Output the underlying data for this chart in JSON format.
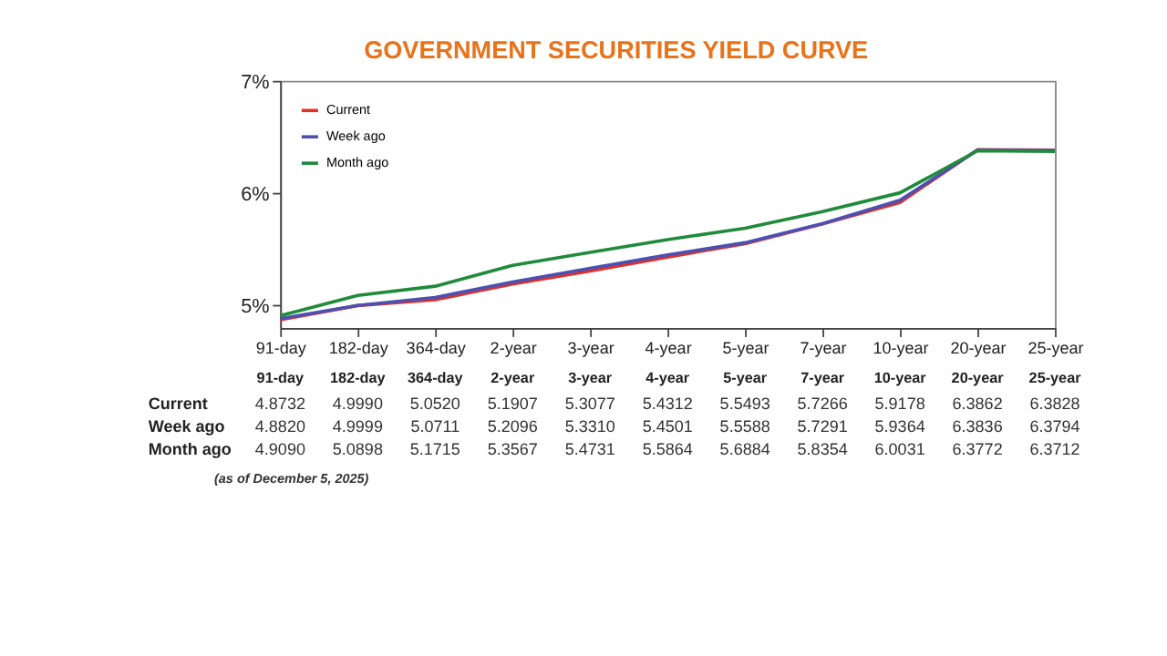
{
  "chart_data": {
    "type": "line",
    "title": "GOVERNMENT SECURITIES YIELD CURVE",
    "categories": [
      "91-day",
      "182-day",
      "364-day",
      "2-year",
      "3-year",
      "4-year",
      "5-year",
      "7-year",
      "10-year",
      "20-year",
      "25-year"
    ],
    "series": [
      {
        "name": "Current",
        "color": "#e0312b",
        "values": [
          4.8732,
          4.999,
          5.052,
          5.1907,
          5.3077,
          5.4312,
          5.5493,
          5.7266,
          5.9178,
          6.3862,
          6.3828
        ],
        "value_labels": [
          "4.8732",
          "4.9990",
          "5.0520",
          "5.1907",
          "5.3077",
          "5.4312",
          "5.5493",
          "5.7266",
          "5.9178",
          "6.3862",
          "6.3828"
        ]
      },
      {
        "name": "Week ago",
        "color": "#4b51b3",
        "values": [
          4.882,
          4.9999,
          5.0711,
          5.2096,
          5.331,
          5.4501,
          5.5588,
          5.7291,
          5.9364,
          6.3836,
          6.3794
        ],
        "value_labels": [
          "4.8820",
          "4.9999",
          "5.0711",
          "5.2096",
          "5.3310",
          "5.4501",
          "5.5588",
          "5.7291",
          "5.9364",
          "6.3836",
          "6.3794"
        ]
      },
      {
        "name": "Month ago",
        "color": "#1f8b3b",
        "values": [
          4.909,
          5.0898,
          5.1715,
          5.3567,
          5.4731,
          5.5864,
          5.6884,
          5.8354,
          6.0031,
          6.3772,
          6.3712
        ],
        "value_labels": [
          "4.9090",
          "5.0898",
          "5.1715",
          "5.3567",
          "5.4731",
          "5.5864",
          "5.6884",
          "5.8354",
          "6.0031",
          "6.3772",
          "6.3712"
        ]
      }
    ],
    "ylim": [
      4.8,
      7
    ],
    "yticks": [
      {
        "value": 5,
        "label": "5%"
      },
      {
        "value": 6,
        "label": "6%"
      },
      {
        "value": 7,
        "label": "7%"
      }
    ],
    "grid": false,
    "legend": "top left",
    "annotations": [
      "(as of December 5, 2025)"
    ]
  }
}
